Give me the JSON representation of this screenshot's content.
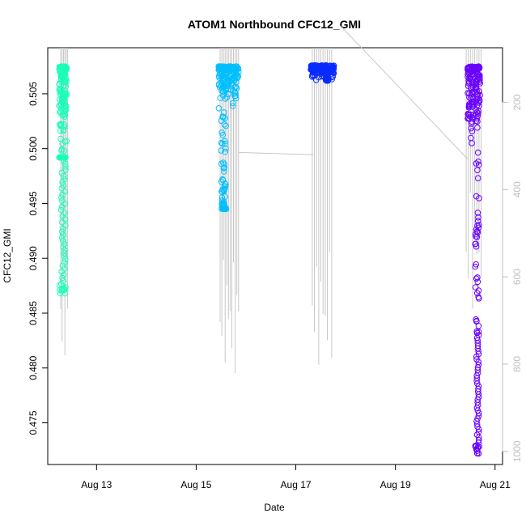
{
  "chart_data": {
    "type": "scatter",
    "title": "ATOM1 Northbound CFC12_GMI",
    "xlabel": "Date",
    "ylabel": "CFC12_GMI",
    "x_ticks": [
      {
        "value": 13,
        "label": "Aug 13"
      },
      {
        "value": 15,
        "label": "Aug 15"
      },
      {
        "value": 17,
        "label": "Aug 17"
      },
      {
        "value": 19,
        "label": "Aug 19"
      },
      {
        "value": 21,
        "label": "Aug 21"
      }
    ],
    "xlim": [
      12.02,
      21.15
    ],
    "ylim": [
      0.4712,
      0.5092
    ],
    "y_ticks": [
      0.475,
      0.48,
      0.485,
      0.49,
      0.495,
      0.5,
      0.505
    ],
    "y_tick_labels": [
      "0.475",
      "0.480",
      "0.485",
      "0.490",
      "0.495",
      "0.500",
      "0.505"
    ],
    "y2_label": "",
    "y2_ticks": [
      200,
      400,
      600,
      800,
      1000
    ],
    "y2_tick_labels": [
      "200",
      "400",
      "600",
      "800",
      "1000"
    ],
    "y2lim": [
      1030,
      75
    ],
    "y2_color": "#bfbfbf",
    "grid": false,
    "legend": "none",
    "profile_series": [
      {
        "color": "#1AFFB8",
        "x_range": [
          12.25,
          12.4
        ],
        "y_upper": [
          0.4992,
          0.5075
        ],
        "y_dense_low": 0.4992,
        "y_min": 0.4868,
        "tail_x": [
          12.25,
          12.38
        ]
      },
      {
        "color": "#00BFFF",
        "x_range": [
          15.45,
          15.85
        ],
        "y_upper": [
          0.5035,
          0.5075
        ],
        "y_dense_low": 0.4945,
        "y_min": 0.4945,
        "tail_x": [
          15.5,
          15.6
        ]
      },
      {
        "color": "#0A2BFF",
        "x_range": [
          17.3,
          17.78
        ],
        "y_upper": [
          0.5062,
          0.5076
        ],
        "y_dense_low": 0.5065,
        "y_min": 0.5062,
        "tail_x": [
          17.6,
          17.65
        ]
      },
      {
        "color": "#6A00FF",
        "x_range": [
          20.45,
          20.7
        ],
        "y_upper": [
          0.5,
          0.5075
        ],
        "y_dense_low": 0.483,
        "y_min": 0.4722,
        "tail_x": [
          20.6,
          20.68
        ]
      }
    ],
    "pressure_trace": {
      "color": "#c8c8c8",
      "connectors": [
        {
          "from": [
            15.85,
            315
          ],
          "to": [
            17.35,
            320
          ]
        },
        {
          "from": [
            17.9,
            25
          ],
          "to": [
            20.45,
            330
          ]
        }
      ],
      "dives": [
        {
          "x_range": [
            12.28,
            12.42
          ],
          "max_pressure": 820,
          "count": 6
        },
        {
          "x_range": [
            15.48,
            15.85
          ],
          "max_pressure": 830,
          "count": 12
        },
        {
          "x_range": [
            17.33,
            17.72
          ],
          "max_pressure": 820,
          "count": 10
        },
        {
          "x_range": [
            20.42,
            20.72
          ],
          "max_pressure": 680,
          "count": 8
        }
      ]
    }
  }
}
